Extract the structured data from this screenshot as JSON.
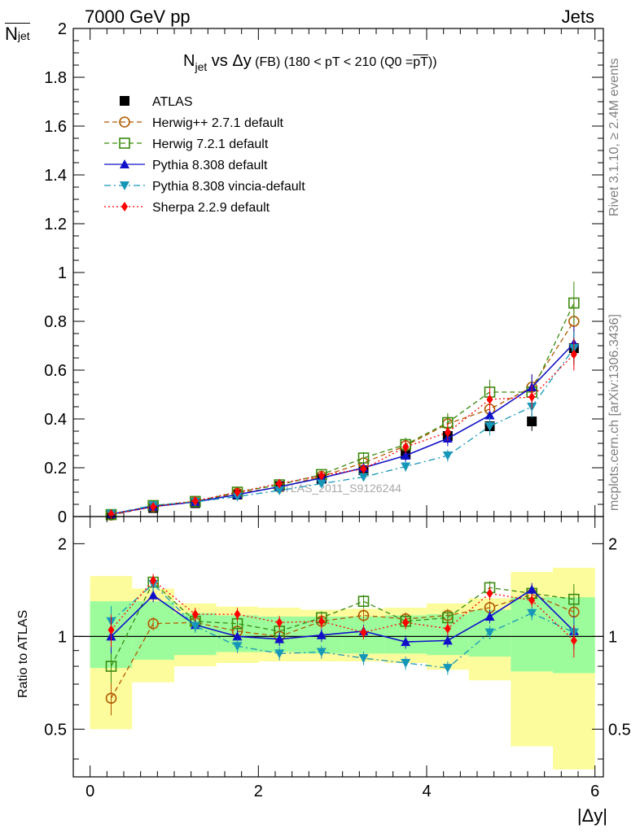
{
  "header": {
    "left": "7000 GeV pp",
    "right": "Jets"
  },
  "title": {
    "n": "N",
    "n_sub": "jet",
    "vs": " vs ",
    "delta": "Δy",
    "fb": " (FB) ",
    "range_a": "(180 < pT < 210 (Q0 =",
    "range_ovl": "pT",
    "range_b": "))"
  },
  "ylabel_top": {
    "n": "N",
    "sub": "jet"
  },
  "ylabel_ratio": "Ratio to ATLAS",
  "xlabel": "|Δy|",
  "side_text": {
    "rivet": "Rivet 3.1.10, ≥ 2.4M events",
    "mcplots": "mcplots.cern.ch [arXiv:1306.3436]"
  },
  "watermark": "ATLAS_2011_S9126244",
  "colors": {
    "atlas": "#000000",
    "herwigpp": "#b35900",
    "herwig7": "#3a8a0f",
    "pythia": "#1010c8",
    "vincia": "#1797b8",
    "sherpa": "#ff0000",
    "band_inner": "#9cfc9c",
    "band_outer": "#fcfc9c"
  },
  "chart_data": [
    {
      "type": "scatter",
      "xlim": [
        -0.2,
        6.1
      ],
      "ylim": [
        0,
        2
      ],
      "y_ticks": [
        "0",
        "0.2",
        "0.4",
        "0.6",
        "0.8",
        "1",
        "1.2",
        "1.4",
        "1.6",
        "1.8",
        "2"
      ],
      "x": [
        0.25,
        0.75,
        1.25,
        1.75,
        2.25,
        2.75,
        3.25,
        3.75,
        4.25,
        4.75,
        5.25,
        5.75
      ],
      "series": [
        {
          "name": "ATLAS",
          "marker": "square-filled",
          "line": "none",
          "values": [
            0.01,
            0.035,
            0.055,
            0.09,
            0.125,
            0.155,
            0.19,
            0.255,
            0.33,
            0.37,
            0.39,
            0.69
          ]
        },
        {
          "name": "Herwig++ 2.7.1 default",
          "marker": "circle-open",
          "line": "dashed",
          "values": [
            0.006,
            0.041,
            0.062,
            0.096,
            0.12,
            0.165,
            0.22,
            0.29,
            0.38,
            0.44,
            0.53,
            0.8
          ]
        },
        {
          "name": "Herwig 7.2.1 default",
          "marker": "square-open",
          "line": "dashed",
          "values": [
            0.008,
            0.045,
            0.062,
            0.1,
            0.13,
            0.172,
            0.24,
            0.295,
            0.385,
            0.51,
            0.51,
            0.875
          ]
        },
        {
          "name": "Pythia 8.308 default",
          "marker": "triangle-up",
          "line": "solid",
          "values": [
            0.01,
            0.041,
            0.06,
            0.09,
            0.122,
            0.158,
            0.2,
            0.25,
            0.32,
            0.415,
            0.53,
            0.71
          ]
        },
        {
          "name": "Pythia 8.308 vincia-default",
          "marker": "triangle-down",
          "line": "dashdot",
          "values": [
            0.011,
            0.046,
            0.06,
            0.082,
            0.107,
            0.135,
            0.162,
            0.205,
            0.25,
            0.37,
            0.45,
            0.69
          ]
        },
        {
          "name": "Sherpa 2.2.9 default",
          "marker": "diamond",
          "line": "dotted",
          "values": [
            0.0105,
            0.04,
            0.064,
            0.1,
            0.135,
            0.168,
            0.195,
            0.285,
            0.345,
            0.48,
            0.49,
            0.665
          ]
        }
      ]
    },
    {
      "type": "scatter",
      "title": "Ratio to ATLAS",
      "xlim": [
        -0.2,
        6.1
      ],
      "ylim": [
        0.35,
        2.45
      ],
      "y_scale": "log",
      "y_ticks": [
        "0.5",
        "1",
        "2"
      ],
      "x_ticks": [
        "0",
        "2",
        "4",
        "6"
      ],
      "x": [
        0.25,
        0.75,
        1.25,
        1.75,
        2.25,
        2.75,
        3.25,
        3.75,
        4.25,
        4.75,
        5.25,
        5.75
      ],
      "band_edges": [
        0,
        0.5,
        1,
        1.5,
        2,
        2.5,
        3,
        3.5,
        4,
        4.5,
        5,
        5.5,
        6
      ],
      "band_inner": [
        [
          0.79,
          1.3
        ],
        [
          0.84,
          1.3
        ],
        [
          0.87,
          1.19
        ],
        [
          0.89,
          1.17
        ],
        [
          0.89,
          1.16
        ],
        [
          0.88,
          1.16
        ],
        [
          0.88,
          1.16
        ],
        [
          0.88,
          1.17
        ],
        [
          0.87,
          1.18
        ],
        [
          0.86,
          1.22
        ],
        [
          0.77,
          1.34
        ],
        [
          0.76,
          1.34
        ]
      ],
      "band_outer": [
        [
          0.5,
          1.57
        ],
        [
          0.71,
          1.43
        ],
        [
          0.8,
          1.28
        ],
        [
          0.82,
          1.25
        ],
        [
          0.83,
          1.24
        ],
        [
          0.83,
          1.22
        ],
        [
          0.83,
          1.23
        ],
        [
          0.82,
          1.24
        ],
        [
          0.78,
          1.28
        ],
        [
          0.72,
          1.33
        ],
        [
          0.44,
          1.62
        ],
        [
          0.37,
          1.67
        ]
      ],
      "series": [
        {
          "name": "Herwig++ 2.7.1 default",
          "values": [
            0.63,
            1.1,
            1.11,
            1.04,
            1.0,
            1.12,
            1.17,
            1.14,
            1.17,
            1.24,
            1.37,
            1.2
          ]
        },
        {
          "name": "Herwig 7.2.1 default",
          "values": [
            0.8,
            1.5,
            1.12,
            1.1,
            1.04,
            1.15,
            1.3,
            1.12,
            1.15,
            1.44,
            1.38,
            1.32
          ]
        },
        {
          "name": "Pythia 8.308 default",
          "values": [
            1.0,
            1.36,
            1.09,
            1.0,
            0.98,
            1.01,
            1.04,
            0.96,
            0.97,
            1.16,
            1.42,
            1.04
          ]
        },
        {
          "name": "Pythia 8.308 vincia-default",
          "values": [
            1.12,
            1.48,
            1.08,
            0.93,
            0.88,
            0.89,
            0.85,
            0.82,
            0.79,
            1.03,
            1.19,
            1.03
          ]
        },
        {
          "name": "Sherpa 2.2.9 default",
          "values": [
            1.05,
            1.52,
            1.18,
            1.18,
            1.11,
            1.12,
            1.03,
            1.11,
            1.06,
            1.38,
            1.31,
            0.97
          ]
        }
      ]
    }
  ]
}
